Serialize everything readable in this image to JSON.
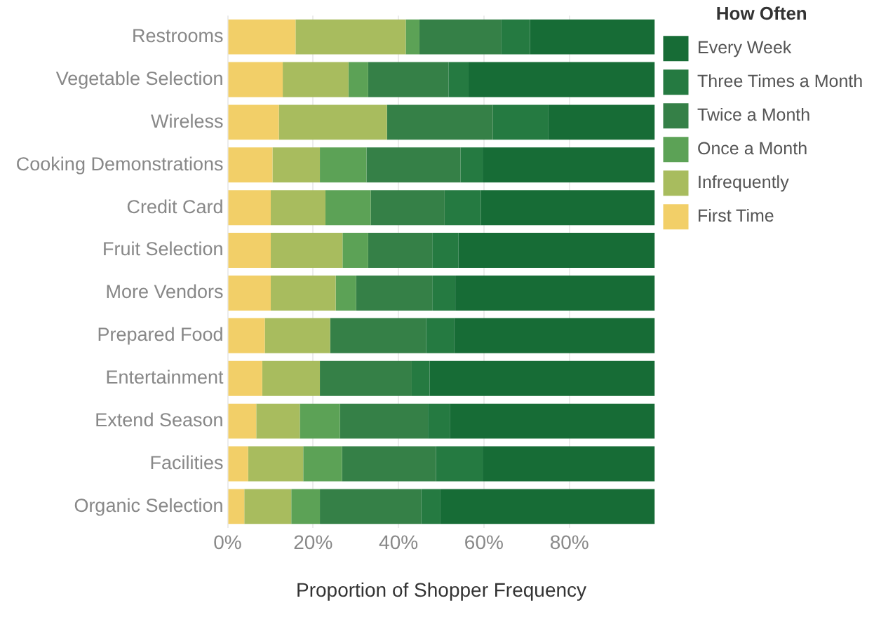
{
  "chart_data": {
    "type": "bar",
    "orientation": "horizontal",
    "stacked": true,
    "xlabel": "Proportion of Shopper Frequency",
    "legend_title": "How Often",
    "legend": "top right",
    "grid": "x",
    "categories": [
      "Restrooms",
      "Vegetable Selection",
      "Wireless",
      "Cooking Demonstrations",
      "Credit Card",
      "Fruit Selection",
      "More Vendors",
      "Prepared Food",
      "Entertainment",
      "Extend Season",
      "Facilities",
      "Organic Selection"
    ],
    "xlim": [
      0,
      100
    ],
    "xticks": [
      {
        "value": 0,
        "label": "0%"
      },
      {
        "value": 20,
        "label": "20%"
      },
      {
        "value": 40,
        "label": "40%"
      },
      {
        "value": 60,
        "label": "60%"
      },
      {
        "value": 80,
        "label": "80%"
      }
    ],
    "series": [
      {
        "name": "First Time",
        "color": "#f2cf68",
        "values": [
          15.9,
          12.9,
          12,
          10.5,
          10.1,
          10.1,
          10.1,
          8.7,
          8.1,
          6.7,
          4.8,
          3.9
        ]
      },
      {
        "name": "Infrequently",
        "color": "#a8bc5e",
        "values": [
          25.8,
          15.4,
          25.3,
          11.1,
          12.8,
          16.8,
          15.2,
          15.3,
          13.5,
          10.2,
          12.9,
          11
        ]
      },
      {
        "name": "Once a Month",
        "color": "#5ca256",
        "values": [
          3.2,
          4.6,
          0,
          10.9,
          10.6,
          6,
          4.8,
          0,
          0,
          9.4,
          9.1,
          6.7
        ]
      },
      {
        "name": "Twice a Month",
        "color": "#358047",
        "values": [
          19.2,
          18.8,
          24.8,
          22,
          17.3,
          15,
          17.8,
          22.5,
          21.5,
          20.6,
          22,
          23.7
        ]
      },
      {
        "name": "Three Times a Month",
        "color": "#257a41",
        "values": [
          6.7,
          4.7,
          13,
          5.2,
          8.5,
          6.1,
          5.4,
          6.5,
          4.2,
          5.1,
          10.9,
          4.4
        ]
      },
      {
        "name": "Every Week",
        "color": "#176c36",
        "values": [
          29.2,
          43.6,
          24.9,
          40.3,
          40.7,
          46,
          46.7,
          47,
          52.7,
          48,
          40.3,
          50.3
        ]
      }
    ]
  }
}
